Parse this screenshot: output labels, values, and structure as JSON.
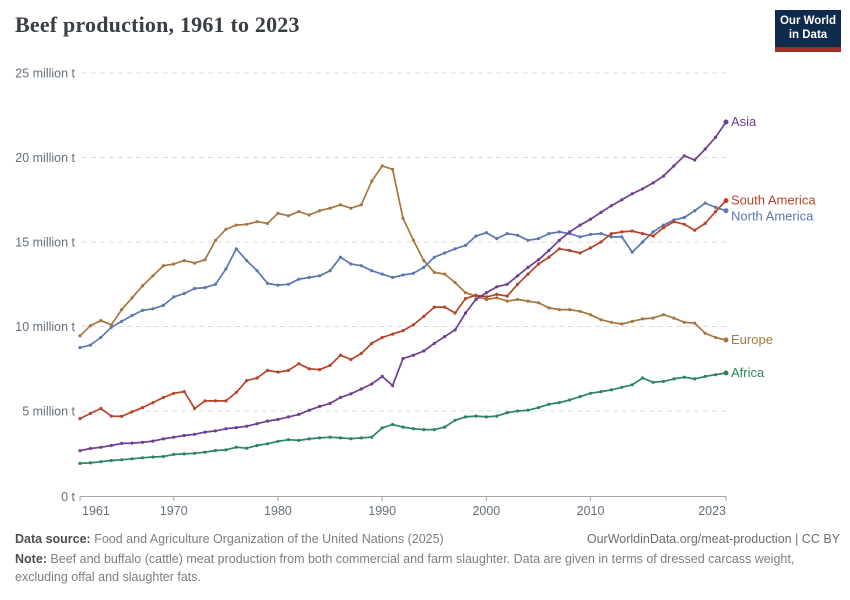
{
  "header": {
    "title": "Beef production, 1961 to 2023",
    "logo": {
      "line1": "Our World",
      "line2": "in Data"
    }
  },
  "footer": {
    "source_label": "Data source:",
    "source_text": " Food and Agriculture Organization of the United Nations (2025)",
    "link_text": "OurWorldinData.org/meat-production | CC BY",
    "note_label": "Note:",
    "note_text": " Beef and buffalo (cattle) meat production from both commercial and farm slaughter. Data are given in terms of dressed carcass weight, excluding offal and slaughter fats."
  },
  "colors": {
    "asia": "#6d3e91",
    "south_america": "#b5442b",
    "north_america": "#5a78af",
    "europe": "#a6763d",
    "africa": "#2c855f",
    "gridline": "#dcdcdc",
    "axis": "#a5a5a5",
    "tick_label": "#67707a",
    "logo_bg": "#0e2a4d",
    "logo_accent": "#a32e27"
  },
  "chart_data": {
    "type": "line",
    "title": "Beef production, 1961 to 2023",
    "unit": "million tonnes",
    "xlabel": "",
    "ylabel": "",
    "grid": "horizontal dashed",
    "legend_position": "line-end labels",
    "xlim": [
      1961,
      2023
    ],
    "ylim": [
      0,
      25
    ],
    "x_ticks": [
      1961,
      1970,
      1980,
      1990,
      2000,
      2010,
      2023
    ],
    "y_ticks": [
      {
        "value": 0,
        "label": "0 t"
      },
      {
        "value": 5,
        "label": "5 million t"
      },
      {
        "value": 10,
        "label": "10 million t"
      },
      {
        "value": 15,
        "label": "15 million t"
      },
      {
        "value": 20,
        "label": "20 million t"
      },
      {
        "value": 25,
        "label": "25 million t"
      }
    ],
    "x": [
      1961,
      1962,
      1963,
      1964,
      1965,
      1966,
      1967,
      1968,
      1969,
      1970,
      1971,
      1972,
      1973,
      1974,
      1975,
      1976,
      1977,
      1978,
      1979,
      1980,
      1981,
      1982,
      1983,
      1984,
      1985,
      1986,
      1987,
      1988,
      1989,
      1990,
      1991,
      1992,
      1993,
      1994,
      1995,
      1996,
      1997,
      1998,
      1999,
      2000,
      2001,
      2002,
      2003,
      2004,
      2005,
      2006,
      2007,
      2008,
      2009,
      2010,
      2011,
      2012,
      2013,
      2014,
      2015,
      2016,
      2017,
      2018,
      2019,
      2020,
      2021,
      2022,
      2023
    ],
    "series": [
      {
        "name": "Europe",
        "color": "#a6763d",
        "label_dy": 4,
        "values": [
          9.45,
          10.05,
          10.35,
          10.1,
          11.0,
          11.7,
          12.4,
          13.0,
          13.6,
          13.7,
          13.9,
          13.75,
          13.95,
          15.1,
          15.75,
          16.0,
          16.05,
          16.2,
          16.1,
          16.7,
          16.55,
          16.8,
          16.6,
          16.85,
          17.0,
          17.2,
          17.0,
          17.2,
          18.6,
          19.5,
          19.3,
          16.4,
          15.1,
          13.9,
          13.2,
          13.1,
          12.6,
          12.0,
          11.8,
          11.6,
          11.7,
          11.5,
          11.6,
          11.5,
          11.4,
          11.1,
          11.0,
          11.0,
          10.9,
          10.7,
          10.4,
          10.25,
          10.15,
          10.3,
          10.45,
          10.5,
          10.7,
          10.5,
          10.25,
          10.2,
          9.6,
          9.35,
          9.2
        ]
      },
      {
        "name": "North America",
        "color": "#5a78af",
        "label_dy": 10,
        "values": [
          8.75,
          8.9,
          9.35,
          9.95,
          10.3,
          10.65,
          10.95,
          11.05,
          11.25,
          11.75,
          11.95,
          12.25,
          12.3,
          12.5,
          13.4,
          14.6,
          13.9,
          13.3,
          12.55,
          12.45,
          12.5,
          12.8,
          12.9,
          13.0,
          13.3,
          14.1,
          13.7,
          13.6,
          13.3,
          13.1,
          12.9,
          13.05,
          13.15,
          13.5,
          14.1,
          14.35,
          14.6,
          14.8,
          15.35,
          15.55,
          15.2,
          15.5,
          15.4,
          15.1,
          15.2,
          15.5,
          15.6,
          15.5,
          15.3,
          15.45,
          15.5,
          15.3,
          15.3,
          14.4,
          15.0,
          15.6,
          16.0,
          16.3,
          16.45,
          16.85,
          17.3,
          17.05,
          16.85
        ]
      },
      {
        "name": "South America",
        "color": "#b5442b",
        "label_dy": 4,
        "values": [
          4.55,
          4.85,
          5.15,
          4.7,
          4.68,
          4.95,
          5.2,
          5.5,
          5.8,
          6.05,
          6.15,
          5.15,
          5.6,
          5.6,
          5.6,
          6.1,
          6.8,
          6.95,
          7.4,
          7.3,
          7.4,
          7.8,
          7.5,
          7.45,
          7.7,
          8.3,
          8.05,
          8.4,
          9.0,
          9.35,
          9.55,
          9.75,
          10.1,
          10.6,
          11.15,
          11.15,
          10.8,
          11.65,
          11.85,
          11.75,
          11.9,
          11.8,
          12.5,
          13.1,
          13.7,
          14.1,
          14.6,
          14.5,
          14.35,
          14.65,
          15.0,
          15.5,
          15.6,
          15.65,
          15.5,
          15.35,
          15.85,
          16.2,
          16.05,
          15.7,
          16.1,
          16.8,
          17.45
        ]
      },
      {
        "name": "Africa",
        "color": "#2c855f",
        "label_dy": 4,
        "values": [
          1.9,
          1.93,
          2.0,
          2.07,
          2.11,
          2.17,
          2.23,
          2.28,
          2.31,
          2.43,
          2.46,
          2.5,
          2.56,
          2.66,
          2.7,
          2.86,
          2.8,
          2.96,
          3.06,
          3.21,
          3.3,
          3.26,
          3.35,
          3.41,
          3.45,
          3.41,
          3.36,
          3.41,
          3.45,
          4.0,
          4.2,
          4.05,
          3.95,
          3.9,
          3.9,
          4.05,
          4.45,
          4.65,
          4.7,
          4.65,
          4.7,
          4.9,
          5.0,
          5.05,
          5.2,
          5.4,
          5.5,
          5.65,
          5.85,
          6.05,
          6.15,
          6.25,
          6.4,
          6.55,
          6.95,
          6.7,
          6.75,
          6.9,
          7.0,
          6.9,
          7.05,
          7.15,
          7.25
        ]
      },
      {
        "name": "Asia",
        "color": "#6d3e91",
        "label_dy": 4,
        "values": [
          2.65,
          2.78,
          2.85,
          2.96,
          3.08,
          3.1,
          3.15,
          3.22,
          3.35,
          3.45,
          3.55,
          3.62,
          3.75,
          3.82,
          3.95,
          4.02,
          4.1,
          4.25,
          4.4,
          4.5,
          4.65,
          4.8,
          5.05,
          5.27,
          5.45,
          5.8,
          6.02,
          6.3,
          6.6,
          7.05,
          6.5,
          8.1,
          8.3,
          8.55,
          9.0,
          9.4,
          9.8,
          10.8,
          11.6,
          12.0,
          12.35,
          12.5,
          13.0,
          13.5,
          13.95,
          14.5,
          15.1,
          15.6,
          16.0,
          16.35,
          16.75,
          17.15,
          17.5,
          17.85,
          18.15,
          18.5,
          18.9,
          19.5,
          20.1,
          19.85,
          20.5,
          21.2,
          22.1
        ]
      }
    ]
  }
}
